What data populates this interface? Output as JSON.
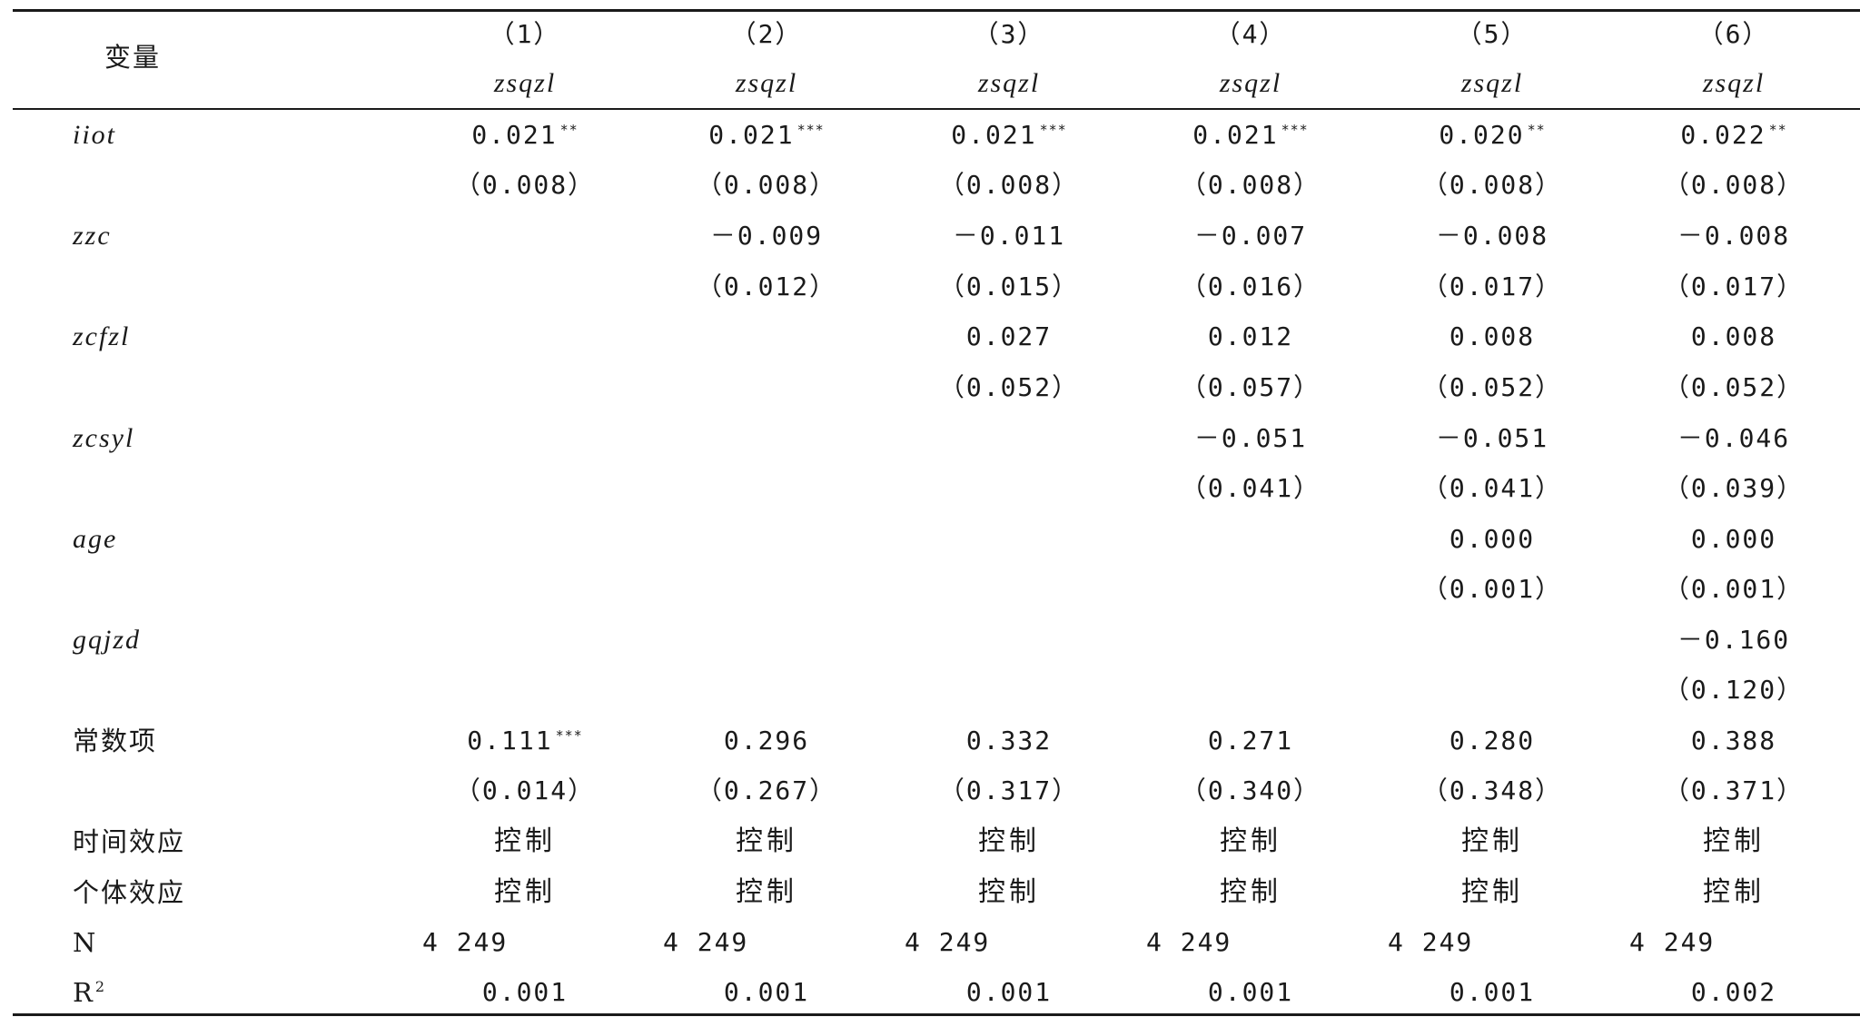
{
  "header": {
    "var_label": "变量",
    "columns": [
      {
        "num": "（1）",
        "dep": "zsqzl"
      },
      {
        "num": "（2）",
        "dep": "zsqzl"
      },
      {
        "num": "（3）",
        "dep": "zsqzl"
      },
      {
        "num": "（4）",
        "dep": "zsqzl"
      },
      {
        "num": "（5）",
        "dep": "zsqzl"
      },
      {
        "num": "（6）",
        "dep": "zsqzl"
      }
    ]
  },
  "rows": [
    {
      "label": "iiot",
      "italic": true,
      "kind": "coef",
      "cells": [
        {
          "v": "0.021",
          "s": "**"
        },
        {
          "v": "0.021",
          "s": "***"
        },
        {
          "v": "0.021",
          "s": "***"
        },
        {
          "v": "0.021",
          "s": "***"
        },
        {
          "v": "0.020",
          "s": "**"
        },
        {
          "v": "0.022",
          "s": "**"
        }
      ]
    },
    {
      "label": "",
      "kind": "se",
      "cells": [
        {
          "v": "（0.008）"
        },
        {
          "v": "（0.008）"
        },
        {
          "v": "（0.008）"
        },
        {
          "v": "（0.008）"
        },
        {
          "v": "（0.008）"
        },
        {
          "v": "（0.008）"
        }
      ]
    },
    {
      "label": "zzc",
      "italic": true,
      "kind": "coef",
      "cells": [
        {
          "v": ""
        },
        {
          "v": "－0.009"
        },
        {
          "v": "－0.011"
        },
        {
          "v": "－0.007"
        },
        {
          "v": "－0.008"
        },
        {
          "v": "－0.008"
        }
      ]
    },
    {
      "label": "",
      "kind": "se",
      "cells": [
        {
          "v": ""
        },
        {
          "v": "（0.012）"
        },
        {
          "v": "（0.015）"
        },
        {
          "v": "（0.016）"
        },
        {
          "v": "（0.017）"
        },
        {
          "v": "（0.017）"
        }
      ]
    },
    {
      "label": "zcfzl",
      "italic": true,
      "kind": "coef",
      "cells": [
        {
          "v": ""
        },
        {
          "v": ""
        },
        {
          "v": "0.027"
        },
        {
          "v": "0.012"
        },
        {
          "v": "0.008"
        },
        {
          "v": "0.008"
        }
      ]
    },
    {
      "label": "",
      "kind": "se",
      "cells": [
        {
          "v": ""
        },
        {
          "v": ""
        },
        {
          "v": "（0.052）"
        },
        {
          "v": "（0.057）"
        },
        {
          "v": "（0.052）"
        },
        {
          "v": "（0.052）"
        }
      ]
    },
    {
      "label": "zcsyl",
      "italic": true,
      "kind": "coef",
      "cells": [
        {
          "v": ""
        },
        {
          "v": ""
        },
        {
          "v": ""
        },
        {
          "v": "－0.051"
        },
        {
          "v": "－0.051"
        },
        {
          "v": "－0.046"
        }
      ]
    },
    {
      "label": "",
      "kind": "se",
      "cells": [
        {
          "v": ""
        },
        {
          "v": ""
        },
        {
          "v": ""
        },
        {
          "v": "（0.041）"
        },
        {
          "v": "（0.041）"
        },
        {
          "v": "（0.039）"
        }
      ]
    },
    {
      "label": "age",
      "italic": true,
      "kind": "coef",
      "cells": [
        {
          "v": ""
        },
        {
          "v": ""
        },
        {
          "v": ""
        },
        {
          "v": ""
        },
        {
          "v": "0.000"
        },
        {
          "v": "0.000"
        }
      ]
    },
    {
      "label": "",
      "kind": "se",
      "cells": [
        {
          "v": ""
        },
        {
          "v": ""
        },
        {
          "v": ""
        },
        {
          "v": ""
        },
        {
          "v": "（0.001）"
        },
        {
          "v": "（0.001）"
        }
      ]
    },
    {
      "label": "gqjzd",
      "italic": true,
      "kind": "coef",
      "cells": [
        {
          "v": ""
        },
        {
          "v": ""
        },
        {
          "v": ""
        },
        {
          "v": ""
        },
        {
          "v": ""
        },
        {
          "v": "－0.160"
        }
      ]
    },
    {
      "label": "",
      "kind": "se",
      "cells": [
        {
          "v": ""
        },
        {
          "v": ""
        },
        {
          "v": ""
        },
        {
          "v": ""
        },
        {
          "v": ""
        },
        {
          "v": "（0.120）"
        }
      ]
    },
    {
      "label": "常数项",
      "kind": "coef",
      "cells": [
        {
          "v": "0.111",
          "s": "***"
        },
        {
          "v": "0.296"
        },
        {
          "v": "0.332"
        },
        {
          "v": "0.271"
        },
        {
          "v": "0.280"
        },
        {
          "v": "0.388"
        }
      ]
    },
    {
      "label": "",
      "kind": "se",
      "cells": [
        {
          "v": "（0.014）"
        },
        {
          "v": "（0.267）"
        },
        {
          "v": "（0.317）"
        },
        {
          "v": "（0.340）"
        },
        {
          "v": "（0.348）"
        },
        {
          "v": "（0.371）"
        }
      ]
    },
    {
      "label": "时间效应",
      "kind": "ctrl",
      "cells": [
        {
          "v": "控制"
        },
        {
          "v": "控制"
        },
        {
          "v": "控制"
        },
        {
          "v": "控制"
        },
        {
          "v": "控制"
        },
        {
          "v": "控制"
        }
      ]
    },
    {
      "label": "个体效应",
      "kind": "ctrl",
      "cells": [
        {
          "v": "控制"
        },
        {
          "v": "控制"
        },
        {
          "v": "控制"
        },
        {
          "v": "控制"
        },
        {
          "v": "控制"
        },
        {
          "v": "控制"
        }
      ]
    },
    {
      "label": "N",
      "kind": "n",
      "cells": [
        {
          "v": "4 249"
        },
        {
          "v": "4 249"
        },
        {
          "v": "4 249"
        },
        {
          "v": "4 249"
        },
        {
          "v": "4 249"
        },
        {
          "v": "4 249"
        }
      ]
    },
    {
      "label": "R",
      "label_sup": "2",
      "kind": "coef",
      "cells": [
        {
          "v": "0.001"
        },
        {
          "v": "0.001"
        },
        {
          "v": "0.001"
        },
        {
          "v": "0.001"
        },
        {
          "v": "0.001"
        },
        {
          "v": "0.002"
        }
      ]
    }
  ]
}
